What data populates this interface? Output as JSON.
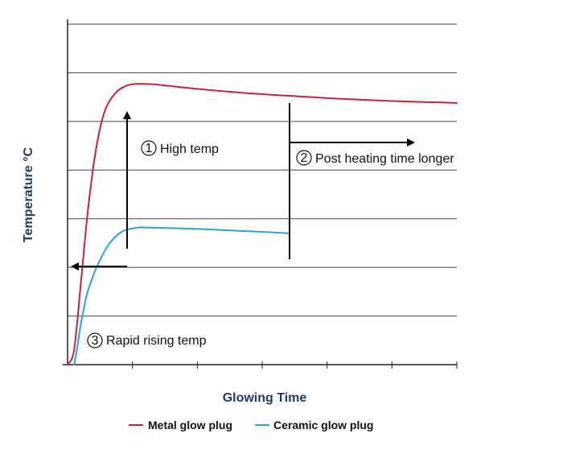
{
  "chart_data": {
    "type": "line",
    "title": "",
    "xlabel": "Glowing Time",
    "ylabel": "Temperature °C",
    "xlim": [
      0,
      6
    ],
    "ylim": [
      0,
      7
    ],
    "x_ticks": [
      0,
      1,
      2,
      3,
      4,
      5,
      6
    ],
    "y_gridlines": [
      1,
      2,
      3,
      4,
      5,
      6,
      7
    ],
    "grid": true,
    "legend_position": "bottom",
    "series": [
      {
        "name": "Metal glow plug",
        "color": "#c8203f",
        "x": [
          0,
          0.1,
          0.2,
          0.3,
          0.4,
          0.5,
          0.6,
          0.75,
          0.9,
          1.05,
          1.2,
          1.35,
          1.5,
          2.0,
          2.5,
          3.0,
          3.5,
          4.0,
          4.5,
          5.0,
          5.5,
          6.0
        ],
        "y": [
          0,
          0.3,
          1.6,
          3.0,
          4.1,
          4.85,
          5.3,
          5.6,
          5.73,
          5.77,
          5.77,
          5.76,
          5.74,
          5.67,
          5.61,
          5.56,
          5.52,
          5.48,
          5.45,
          5.42,
          5.4,
          5.38
        ]
      },
      {
        "name": "Ceramic glow plug",
        "color": "#2aa3d0",
        "x": [
          0.1,
          0.15,
          0.2,
          0.25,
          0.3,
          0.4,
          0.5,
          0.6,
          0.7,
          0.8,
          0.9,
          1.0,
          1.1,
          1.2,
          1.5,
          2.0,
          2.5,
          3.0,
          3.4
        ],
        "y": [
          0,
          0.35,
          0.8,
          1.15,
          1.45,
          1.85,
          2.15,
          2.4,
          2.58,
          2.7,
          2.77,
          2.8,
          2.82,
          2.82,
          2.81,
          2.79,
          2.76,
          2.73,
          2.7
        ]
      }
    ],
    "annotations": [
      {
        "id": "high-temp",
        "label": "High temp",
        "number": "1"
      },
      {
        "id": "post-heating",
        "label": "Post heating time longer",
        "number": "2"
      },
      {
        "id": "rapid-rising",
        "label": "Rapid rising temp",
        "number": "3"
      }
    ],
    "colors": {
      "axis": "#222222",
      "grid": "#444444",
      "label": "#1f3a66",
      "arrow": "#000000"
    }
  }
}
